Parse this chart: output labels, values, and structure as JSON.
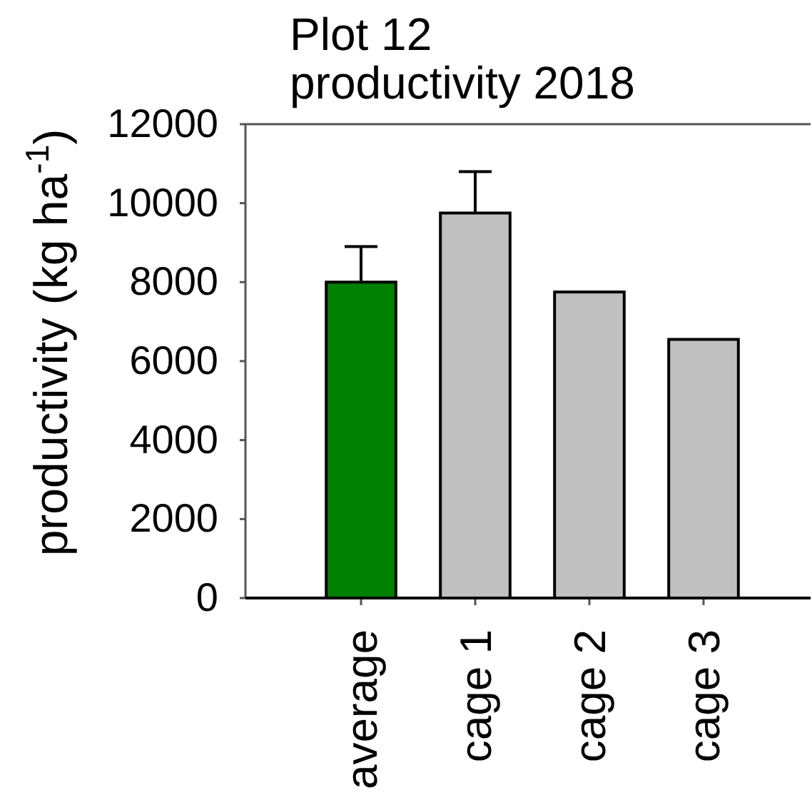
{
  "chart_data": {
    "type": "bar",
    "title": "Plot 12",
    "subtitle": "productivity 2018",
    "ylabel": "productivity (kg ha$^{-1}$)",
    "categories": [
      "average",
      "cage 1",
      "cage 2",
      "cage 3"
    ],
    "values": [
      8000,
      9750,
      7750,
      6550
    ],
    "colors": [
      "#008000",
      "#c0c0c0",
      "#c0c0c0",
      "#c0c0c0"
    ],
    "errors": [
      [
        8000,
        8900
      ],
      [
        9750,
        10800
      ],
      null,
      null
    ],
    "ylim": [
      0,
      12000
    ],
    "yticks": [
      0,
      2000,
      4000,
      6000,
      8000,
      10000,
      12000
    ]
  }
}
